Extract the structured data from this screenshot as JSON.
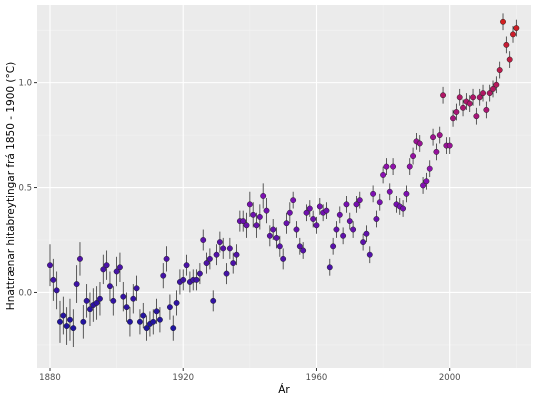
{
  "chart_data": {
    "type": "scatter",
    "title": "",
    "xlabel": "Ár",
    "ylabel": "Hnattrænar hitabreytingar frá 1850 - 1900 (°C)",
    "xlim": [
      1876.1,
      2024.4
    ],
    "ylim": [
      -0.36,
      1.37
    ],
    "x_ticks": [
      1880,
      1920,
      1960,
      2000
    ],
    "x_tick_labels": [
      "1880",
      "1920",
      "1960",
      "2000"
    ],
    "y_ticks": [
      0.0,
      0.5,
      1.0
    ],
    "y_tick_labels": [
      "0.0",
      "0.5",
      "1.0"
    ],
    "grid": true,
    "legend": "none",
    "point_color_low": "#1e14a0",
    "point_color_mid": "#8c10b4",
    "point_color_high": "#d21e1e",
    "panel_background": "#ebebeb",
    "error_bar_color": "#333333",
    "x": [
      1880,
      1881,
      1882,
      1883,
      1884,
      1885,
      1886,
      1887,
      1888,
      1889,
      1890,
      1891,
      1892,
      1893,
      1894,
      1895,
      1896,
      1897,
      1898,
      1899,
      1900,
      1901,
      1902,
      1903,
      1904,
      1905,
      1906,
      1907,
      1908,
      1909,
      1910,
      1911,
      1912,
      1913,
      1914,
      1915,
      1916,
      1917,
      1918,
      1919,
      1920,
      1921,
      1922,
      1923,
      1924,
      1925,
      1926,
      1927,
      1928,
      1929,
      1930,
      1931,
      1932,
      1933,
      1934,
      1935,
      1936,
      1937,
      1938,
      1939,
      1940,
      1941,
      1942,
      1943,
      1944,
      1945,
      1946,
      1947,
      1948,
      1949,
      1950,
      1951,
      1952,
      1953,
      1954,
      1955,
      1956,
      1957,
      1958,
      1959,
      1960,
      1961,
      1962,
      1963,
      1964,
      1965,
      1966,
      1967,
      1968,
      1969,
      1970,
      1971,
      1972,
      1973,
      1974,
      1975,
      1976,
      1977,
      1978,
      1979,
      1980,
      1981,
      1982,
      1983,
      1984,
      1985,
      1986,
      1987,
      1988,
      1989,
      1990,
      1991,
      1992,
      1993,
      1994,
      1995,
      1996,
      1997,
      1998,
      1999,
      2000,
      2001,
      2002,
      2003,
      2004,
      2005,
      2006,
      2007,
      2008,
      2009,
      2010,
      2011,
      2012,
      2013,
      2014,
      2015,
      2016,
      2017,
      2018,
      2019,
      2020
    ],
    "y": [
      0.13,
      0.06,
      0.01,
      -0.14,
      -0.11,
      -0.16,
      -0.13,
      -0.17,
      0.04,
      0.16,
      -0.14,
      -0.04,
      -0.08,
      -0.06,
      -0.05,
      -0.03,
      0.11,
      0.13,
      0.03,
      -0.04,
      0.1,
      0.12,
      -0.02,
      -0.07,
      -0.14,
      -0.03,
      0.02,
      -0.14,
      -0.11,
      -0.17,
      -0.15,
      -0.14,
      -0.09,
      -0.13,
      0.08,
      0.16,
      -0.07,
      -0.17,
      -0.05,
      0.05,
      0.06,
      0.13,
      0.05,
      0.06,
      0.06,
      0.09,
      0.25,
      0.14,
      0.16,
      -0.04,
      0.18,
      0.24,
      0.21,
      0.09,
      0.21,
      0.14,
      0.18,
      0.34,
      0.34,
      0.32,
      0.42,
      0.37,
      0.32,
      0.36,
      0.46,
      0.39,
      0.27,
      0.3,
      0.26,
      0.22,
      0.16,
      0.33,
      0.38,
      0.44,
      0.3,
      0.22,
      0.2,
      0.38,
      0.4,
      0.35,
      0.32,
      0.41,
      0.38,
      0.39,
      0.12,
      0.22,
      0.3,
      0.37,
      0.27,
      0.42,
      0.34,
      0.3,
      0.42,
      0.44,
      0.24,
      0.28,
      0.18,
      0.47,
      0.35,
      0.43,
      0.56,
      0.6,
      0.48,
      0.6,
      0.42,
      0.41,
      0.4,
      0.47,
      0.6,
      0.65,
      0.72,
      0.71,
      0.51,
      0.53,
      0.59,
      0.74,
      0.67,
      0.75,
      0.94,
      0.7,
      0.7,
      0.83,
      0.86,
      0.93,
      0.88,
      0.91,
      0.9,
      0.93,
      0.84,
      0.93,
      0.95,
      0.87,
      0.95,
      0.97,
      0.99,
      1.06,
      1.29,
      1.18,
      1.11,
      1.23,
      1.26
    ],
    "errors": [
      0.1,
      0.1,
      0.09,
      0.1,
      0.09,
      0.09,
      0.1,
      0.09,
      0.09,
      0.08,
      0.08,
      0.08,
      0.08,
      0.08,
      0.08,
      0.08,
      0.07,
      0.07,
      0.07,
      0.07,
      0.07,
      0.07,
      0.07,
      0.07,
      0.07,
      0.07,
      0.06,
      0.06,
      0.06,
      0.06,
      0.06,
      0.06,
      0.06,
      0.06,
      0.06,
      0.06,
      0.06,
      0.06,
      0.06,
      0.06,
      0.05,
      0.05,
      0.05,
      0.05,
      0.05,
      0.05,
      0.05,
      0.05,
      0.05,
      0.05,
      0.05,
      0.05,
      0.05,
      0.05,
      0.05,
      0.05,
      0.05,
      0.05,
      0.05,
      0.06,
      0.06,
      0.06,
      0.06,
      0.06,
      0.06,
      0.06,
      0.05,
      0.05,
      0.05,
      0.05,
      0.05,
      0.05,
      0.05,
      0.04,
      0.04,
      0.04,
      0.04,
      0.04,
      0.04,
      0.04,
      0.04,
      0.04,
      0.04,
      0.04,
      0.04,
      0.04,
      0.04,
      0.04,
      0.04,
      0.04,
      0.04,
      0.04,
      0.04,
      0.04,
      0.04,
      0.04,
      0.04,
      0.04,
      0.04,
      0.04,
      0.04,
      0.04,
      0.04,
      0.04,
      0.04,
      0.04,
      0.04,
      0.04,
      0.04,
      0.04,
      0.04,
      0.04,
      0.04,
      0.04,
      0.04,
      0.04,
      0.04,
      0.04,
      0.04,
      0.04,
      0.04,
      0.04,
      0.04,
      0.04,
      0.04,
      0.04,
      0.04,
      0.04,
      0.04,
      0.04,
      0.04,
      0.04,
      0.04,
      0.04,
      0.04,
      0.04,
      0.04,
      0.04,
      0.04,
      0.04,
      0.04
    ]
  }
}
